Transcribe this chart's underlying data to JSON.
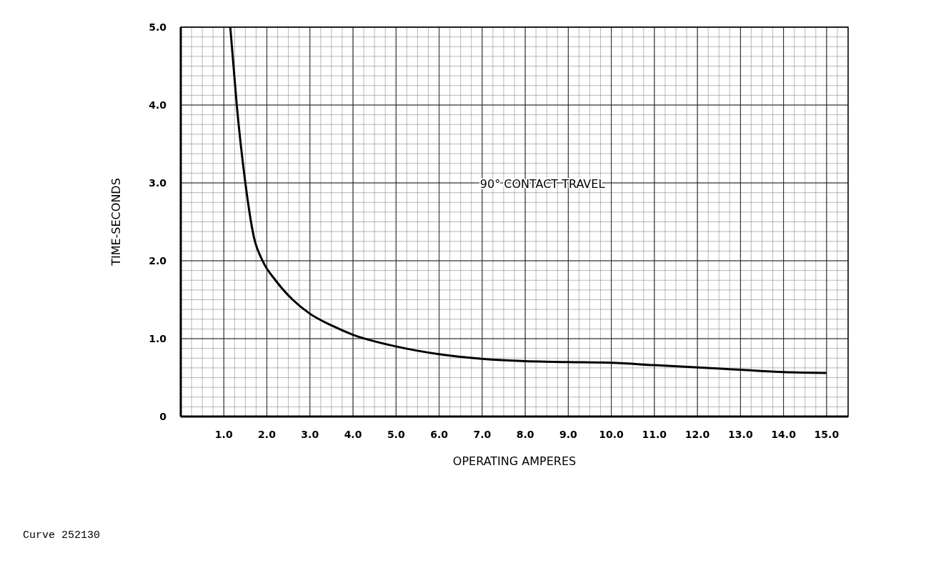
{
  "chart_data": {
    "type": "line",
    "xlabel": "OPERATING AMPERES",
    "ylabel": "TIME-SECONDS",
    "annotations": [
      "90° CONTACT TRAVEL",
      "Curve 252130"
    ],
    "xlim": [
      0,
      15.5
    ],
    "ylim": [
      0,
      5
    ],
    "xticks": [
      {
        "value": 1,
        "label": "1.0"
      },
      {
        "value": 2,
        "label": "2.0"
      },
      {
        "value": 3,
        "label": "3.0"
      },
      {
        "value": 4,
        "label": "4.0"
      },
      {
        "value": 5,
        "label": "5.0"
      },
      {
        "value": 6,
        "label": "6.0"
      },
      {
        "value": 7,
        "label": "7.0"
      },
      {
        "value": 8,
        "label": "8.0"
      },
      {
        "value": 9,
        "label": "9.0"
      },
      {
        "value": 10,
        "label": "10.0"
      },
      {
        "value": 11,
        "label": "11.0"
      },
      {
        "value": 12,
        "label": "12.0"
      },
      {
        "value": 13,
        "label": "13.0"
      },
      {
        "value": 14,
        "label": "14.0"
      },
      {
        "value": 15,
        "label": "15.0"
      }
    ],
    "yticks": [
      0,
      {
        "value": 1,
        "label": "1.0"
      },
      {
        "value": 2,
        "label": "2.0"
      },
      {
        "value": 3,
        "label": "3.0"
      },
      {
        "value": 4,
        "label": "4.0"
      },
      {
        "value": 5,
        "label": "5.0"
      }
    ],
    "grid": true,
    "marker": "none",
    "line_style": "solid",
    "series": [
      {
        "color": "#000000",
        "x": [
          1.15,
          1.3,
          1.5,
          1.7,
          1.9,
          2.2,
          2.6,
          3.0,
          3.5,
          4.0,
          5.0,
          6.0,
          7.0,
          8.0,
          9.0,
          10.0,
          11.0,
          12.0,
          13.0,
          14.0,
          15.0
        ],
        "values": [
          5.0,
          4.0,
          3.0,
          2.3,
          2.0,
          1.75,
          1.5,
          1.32,
          1.17,
          1.05,
          0.9,
          0.8,
          0.74,
          0.71,
          0.7,
          0.69,
          0.66,
          0.63,
          0.6,
          0.57,
          0.56
        ]
      }
    ]
  }
}
